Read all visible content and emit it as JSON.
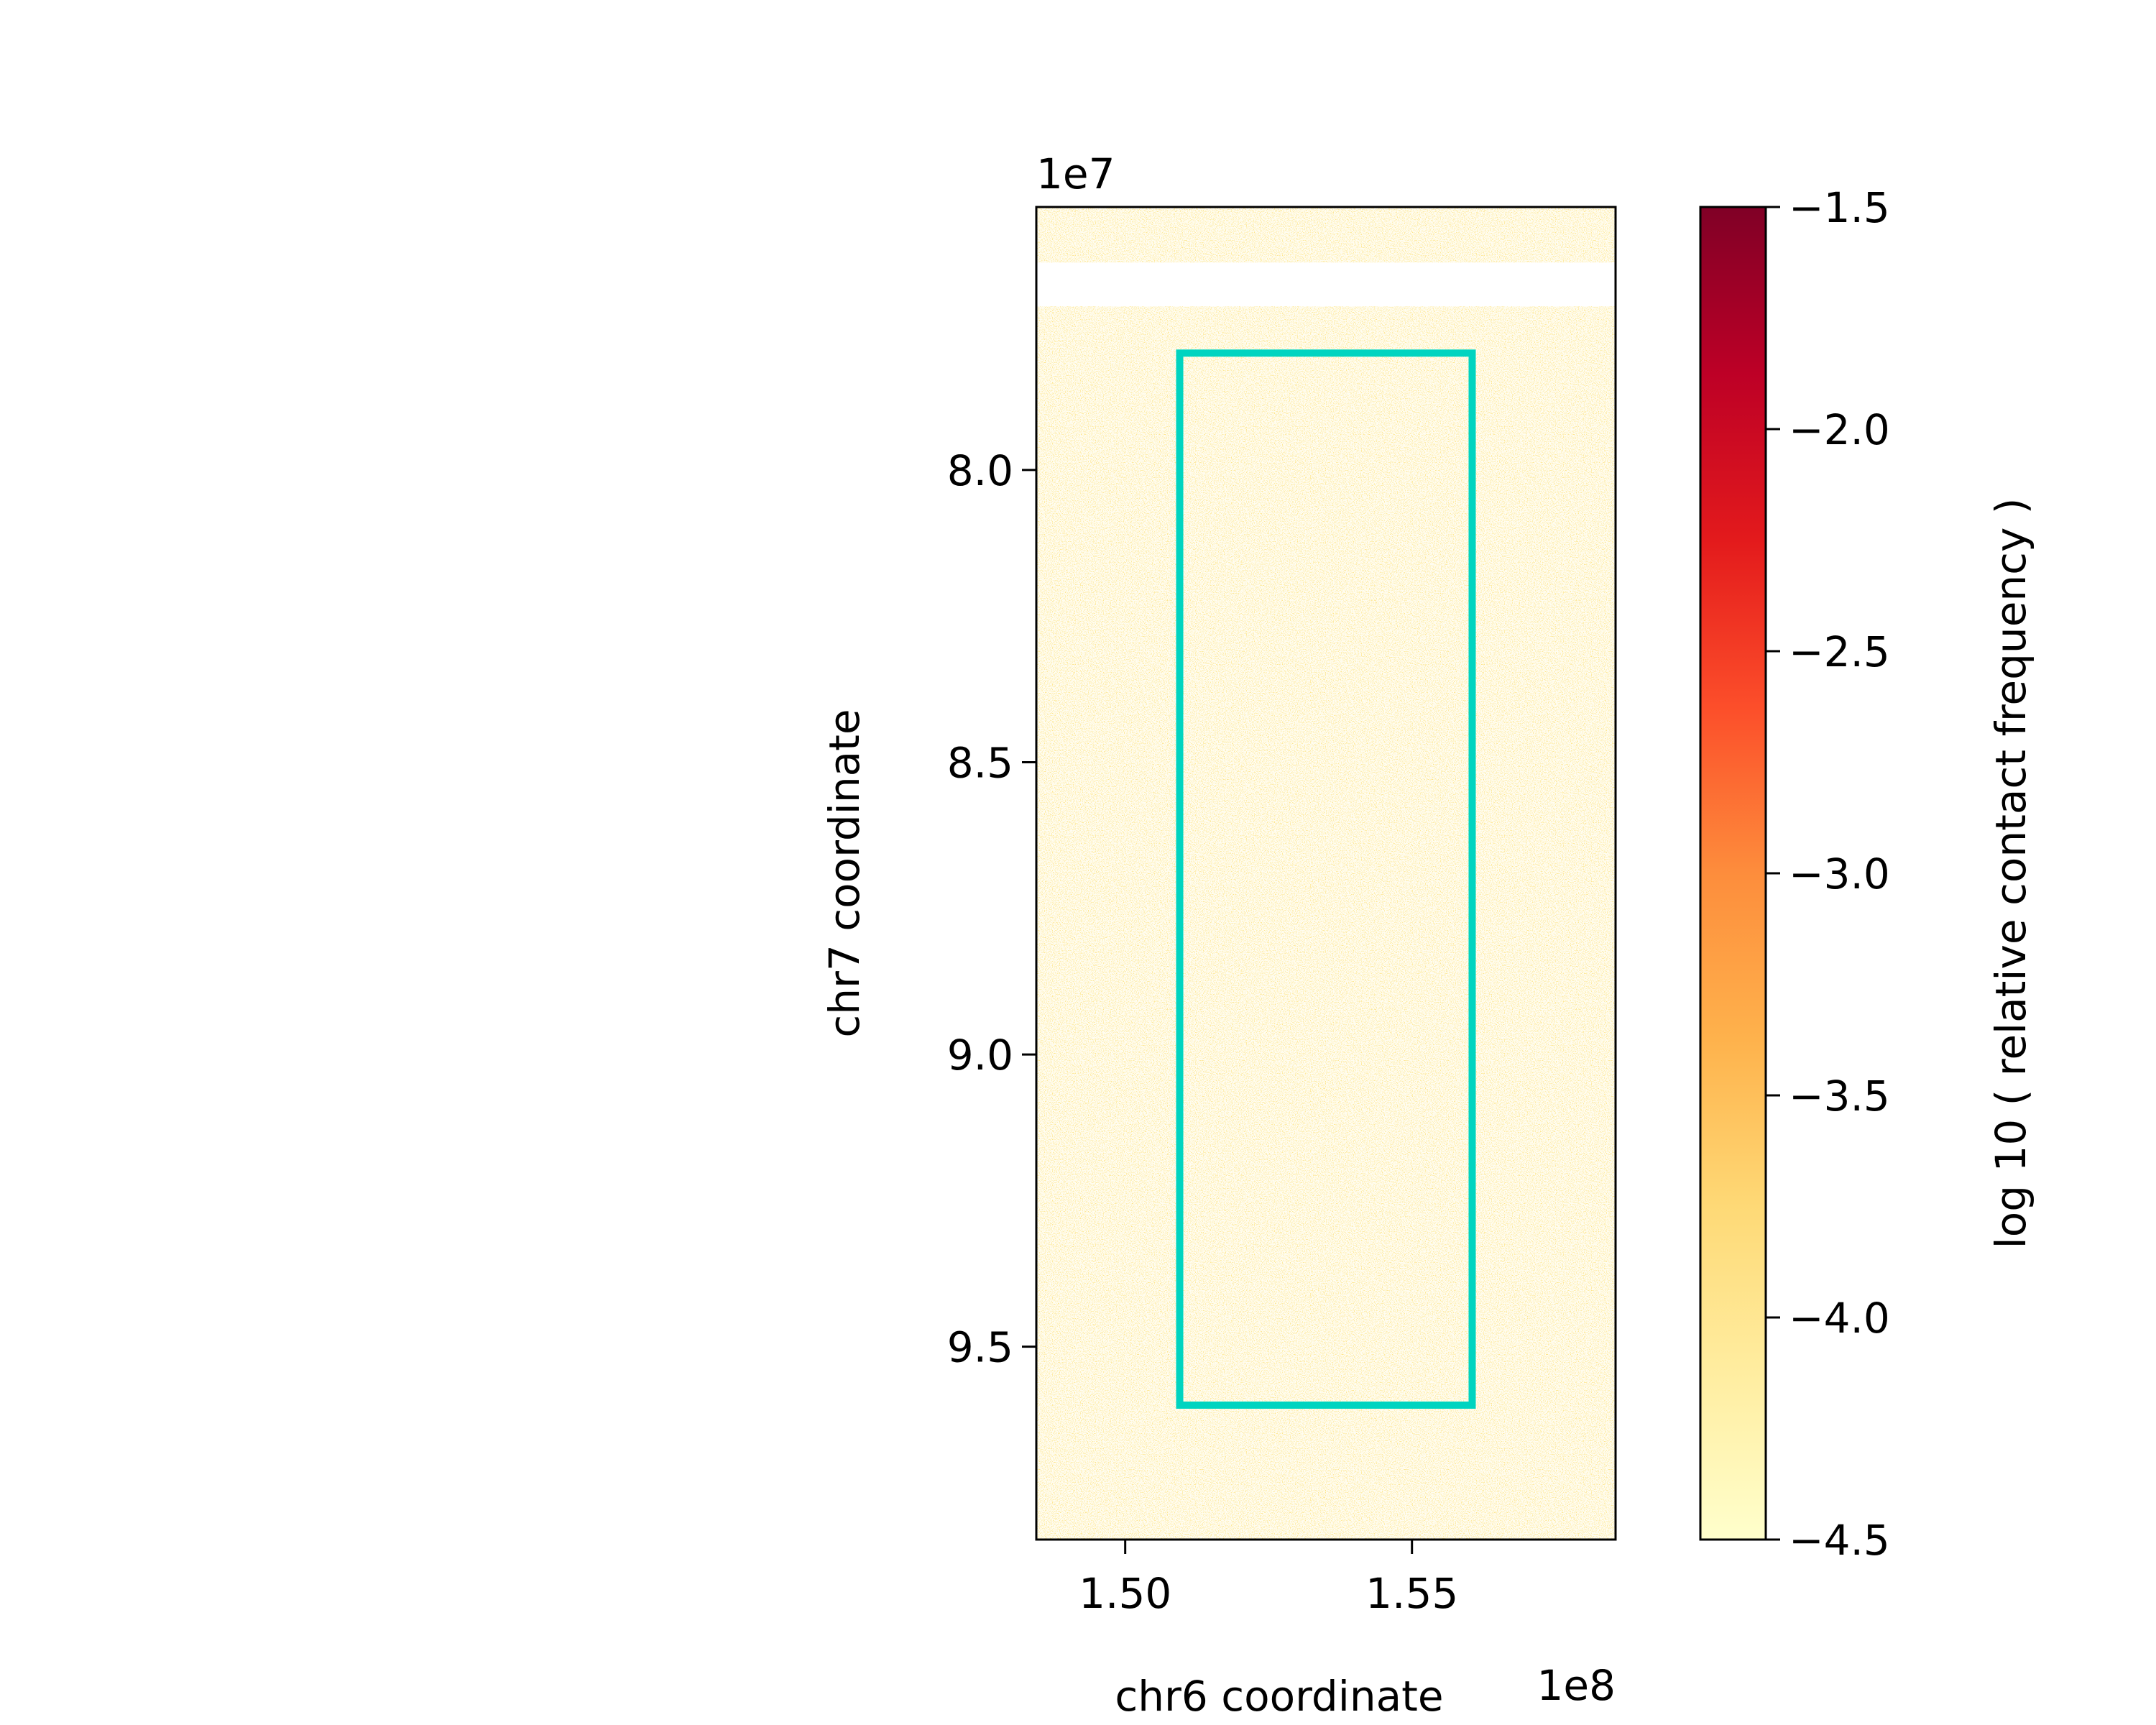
{
  "chart_data": {
    "type": "heatmap",
    "xlabel": "chr6 coordinate",
    "ylabel": "chr7 coordinate",
    "x_offset_label": "1e8",
    "y_offset_label": "1e7",
    "xlim": [
      1.4845,
      1.5855
    ],
    "ylim": [
      9.83,
      7.55
    ],
    "x_ticks": [
      {
        "value": 1.5,
        "label": "1.50"
      },
      {
        "value": 1.55,
        "label": "1.55"
      }
    ],
    "y_ticks": [
      {
        "value": 8.0,
        "label": "8.0"
      },
      {
        "value": 8.5,
        "label": "8.5"
      },
      {
        "value": 9.0,
        "label": "9.0"
      },
      {
        "value": 9.5,
        "label": "9.5"
      }
    ],
    "empty_rows": [
      [
        7.645,
        7.72
      ]
    ],
    "highlight_box": {
      "x0": 1.5095,
      "x1": 1.5605,
      "y0": 7.8,
      "y1": 9.6,
      "color": "#00d4c0"
    },
    "colorbar": {
      "label": "log 10 ( relative contact frequency )",
      "range": [
        -4.5,
        -1.5
      ],
      "ticks": [
        {
          "value": -1.5,
          "label": "−1.5"
        },
        {
          "value": -2.0,
          "label": "−2.0"
        },
        {
          "value": -2.5,
          "label": "−2.5"
        },
        {
          "value": -3.0,
          "label": "−3.0"
        },
        {
          "value": -3.5,
          "label": "−3.5"
        },
        {
          "value": -4.0,
          "label": "−4.0"
        },
        {
          "value": -4.5,
          "label": "−4.5"
        }
      ],
      "colormap": [
        "#ffffcc",
        "#ffeda0",
        "#fed976",
        "#feb24c",
        "#fd8d3c",
        "#fc4e2a",
        "#e31a1c",
        "#bd0026",
        "#800026"
      ]
    }
  }
}
